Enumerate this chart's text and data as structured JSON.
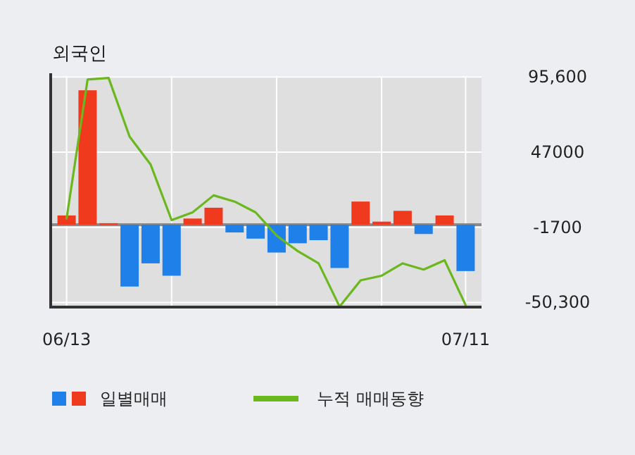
{
  "chart_data": {
    "type": "bar",
    "title": "외국인",
    "categories": [
      "06/13",
      null,
      null,
      null,
      null,
      null,
      null,
      null,
      null,
      null,
      null,
      null,
      null,
      null,
      null,
      null,
      null,
      null,
      null,
      "07/11"
    ],
    "series": [
      {
        "name": "일별매매",
        "colors": [
          "#f03a1e",
          "#f03a1e",
          "#f03a1e",
          "#2080ea",
          "#2080ea",
          "#2080ea",
          "#f03a1e",
          "#f03a1e",
          "#2080ea",
          "#2080ea",
          "#2080ea",
          "#2080ea",
          "#2080ea",
          "#2080ea",
          "#f03a1e",
          "#f03a1e",
          "#f03a1e",
          "#2080ea",
          "#f03a1e",
          "#2080ea"
        ],
        "values": [
          6000,
          87000,
          1000,
          -40000,
          -25000,
          -33000,
          4000,
          11000,
          -5000,
          -9000,
          -18000,
          -12000,
          -10000,
          -28000,
          15000,
          2000,
          9000,
          -6000,
          6000,
          -30000
        ]
      },
      {
        "name": "누적 매매동향",
        "type": "line",
        "color": "#6ab81e",
        "values": [
          4000,
          94000,
          95000,
          57000,
          39000,
          3000,
          8000,
          19000,
          15000,
          8000,
          -7000,
          -17000,
          -25000,
          -53000,
          -36000,
          -33000,
          -25000,
          -29000,
          -23000,
          -52000
        ]
      }
    ],
    "ylim": [
      -53300,
      96200
    ],
    "yticks": [
      {
        "value": 95600,
        "label": "95,600"
      },
      47000,
      -1700,
      {
        "value": -50300,
        "label": "-50,300"
      }
    ],
    "grid": true,
    "legend": "bottom"
  }
}
